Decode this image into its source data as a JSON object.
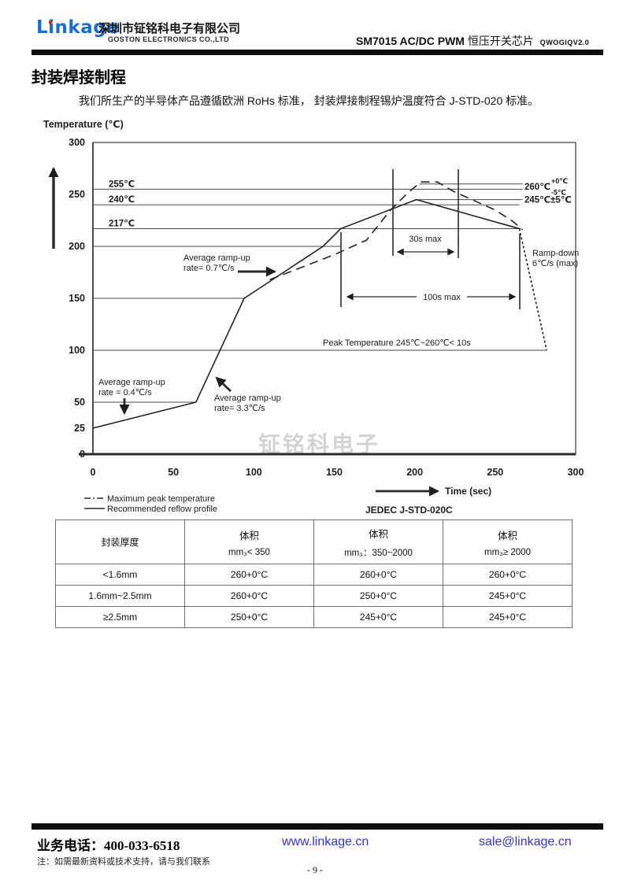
{
  "header": {
    "logo_text": "Linkage",
    "company_cn": "深圳市钲铭科电子有限公司",
    "company_en": "GOSTON ELECTRONICS CO.,LTD",
    "doc_title_model": "SM7015 AC/DC PWM",
    "doc_title_cn": "恒压开关芯片",
    "doc_code": "QWOGIQV2.0"
  },
  "section": {
    "title": "封装焊接制程",
    "intro": "我们所生产的半导体产品遵循欧洲 RoHs 标准， 封装焊接制程锡炉温度符合 J-STD-020 标准。"
  },
  "chart_data": {
    "type": "line",
    "title": "JEDEC J-STD-020C reflow profile",
    "xlabel": "Time (sec)",
    "ylabel": "Temperature (℃)",
    "xlim": [
      0,
      300
    ],
    "ylim": [
      0,
      300
    ],
    "x_ticks": [
      0,
      50,
      100,
      150,
      200,
      250,
      300
    ],
    "y_ticks": [
      0,
      25,
      50,
      100,
      150,
      200,
      250,
      300
    ],
    "grid": "partial-reference-lines",
    "legend_position": "bottom-left",
    "series": [
      {
        "name": "Recommended reflow profile",
        "style": "solid",
        "points": [
          [
            0,
            25
          ],
          [
            64,
            50
          ],
          [
            94,
            150
          ],
          [
            143,
            200
          ],
          [
            154,
            217
          ],
          [
            201,
            245
          ],
          [
            265,
            217
          ]
        ]
      },
      {
        "name": "Ramp-down segment",
        "style": "dotted",
        "points": [
          [
            265,
            217
          ],
          [
            282,
            100
          ]
        ]
      },
      {
        "name": "Maximum peak temperature",
        "style": "dashed",
        "points": [
          [
            110,
            168
          ],
          [
            150,
            192
          ],
          [
            170,
            206
          ],
          [
            185,
            235
          ],
          [
            196,
            252
          ],
          [
            204,
            262
          ],
          [
            214,
            262
          ],
          [
            224,
            253
          ],
          [
            237,
            244
          ],
          [
            250,
            235
          ],
          [
            261,
            224
          ],
          [
            267,
            216
          ]
        ]
      }
    ],
    "reference_lines": [
      {
        "temp": 260,
        "t0": 203,
        "t1": 267,
        "label": ""
      },
      {
        "temp": 255,
        "t0": 0,
        "t1": 267,
        "label": "255℃"
      },
      {
        "temp": 245,
        "t0": 202,
        "t1": 267,
        "label": ""
      },
      {
        "temp": 240,
        "t0": 0,
        "t1": 265,
        "label": "240℃"
      },
      {
        "temp": 217,
        "t0": 0,
        "t1": 266,
        "label": "217℃"
      },
      {
        "temp": 200,
        "t0": 0,
        "t1": 154,
        "label": ""
      },
      {
        "temp": 150,
        "t0": 0,
        "t1": 94,
        "label": ""
      },
      {
        "temp": 100,
        "t0": 0,
        "t1": 282,
        "label": ""
      },
      {
        "temp": 50,
        "t0": 0,
        "t1": 64,
        "label": ""
      }
    ],
    "right_labels": {
      "peak_max_main": "260℃",
      "peak_max_sup": "+0℃",
      "peak_max_sub": "-5℃",
      "peak_rec": "245℃±5℃"
    },
    "annotations": {
      "ramp1": [
        "Average ramp-up",
        "rate = 0.4℃/s"
      ],
      "ramp2": [
        "Average ramp-up",
        "rate= 3.3℃/s"
      ],
      "ramp3": [
        "Average ramp-up",
        "rate= 0.7℃/s"
      ],
      "soak30": "30s max",
      "soak100": "100s max",
      "rampdown": [
        "Ramp-down",
        "6℃/s (max)"
      ],
      "peaktime": "Peak Temperature 245℃~260℃< 10s",
      "jedec": "JEDEC J-STD-020C",
      "time_axis": "Time (sec)"
    },
    "legend": [
      {
        "style": "dashdot",
        "label": "Maximum peak temperature"
      },
      {
        "style": "solid",
        "label": "Recommended reflow profile"
      }
    ]
  },
  "table": {
    "col1_header": "封装厚度",
    "vol_header": "体积",
    "vol_subheaders": [
      "mm₃< 350",
      "mm₃：350~2000",
      "mm₃≥ 2000"
    ],
    "rows": [
      {
        "thickness": "<1.6mm",
        "values": [
          "260+0°C",
          "260+0°C",
          "260+0°C"
        ]
      },
      {
        "thickness": "1.6mm~2.5mm",
        "values": [
          "260+0°C",
          "250+0°C",
          "245+0°C"
        ]
      },
      {
        "thickness": "≥2.5mm",
        "values": [
          "250+0°C",
          "245+0°C",
          "245+0°C"
        ]
      }
    ]
  },
  "watermark": "钲铭科电子",
  "footer": {
    "phone_label": "业务电话：400-033-6518",
    "website": "www.linkage.cn",
    "email": "sale@linkage.cn",
    "note": "注：如需最新资料或技术支持，请与我们联系",
    "page_number": "- 9 -",
    "link_color": "#3434cf",
    "logo_color": "#1b6ec8"
  }
}
